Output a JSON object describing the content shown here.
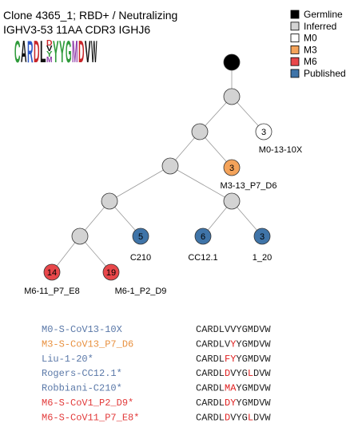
{
  "header": {
    "title": "Clone 4365_1; RBD+ / Neutralizing",
    "subtitle": "IGHV3-53 11AA CDR3 IGHJ6"
  },
  "logo": {
    "columns": [
      [
        "C"
      ],
      [
        "A"
      ],
      [
        "R"
      ],
      [
        "D"
      ],
      [
        "L"
      ],
      [
        "D",
        "V",
        "Y",
        "M"
      ],
      [
        "Y"
      ],
      [
        "Y"
      ],
      [
        "G"
      ],
      [
        "M"
      ],
      [
        "D"
      ],
      [
        "V"
      ],
      [
        "W"
      ]
    ]
  },
  "legend": [
    {
      "name": "Germline",
      "color": "#000000"
    },
    {
      "name": "Inferred",
      "color": "#d3d3d3"
    },
    {
      "name": "M0",
      "color": "#ffffff"
    },
    {
      "name": "M3",
      "color": "#f4a35a"
    },
    {
      "name": "M6",
      "color": "#e8474a"
    },
    {
      "name": "Published",
      "color": "#3f74a8"
    }
  ],
  "nodes": [
    {
      "group": "Germline"
    },
    {
      "group": "Inferred"
    },
    {
      "group": "Inferred"
    },
    {
      "group": "M0",
      "label": "3",
      "caption": "M0-13-10X"
    },
    {
      "group": "Inferred"
    },
    {
      "group": "M3",
      "label": "3",
      "caption": "M3-13_P7_D6"
    },
    {
      "group": "Inferred"
    },
    {
      "group": "Inferred"
    },
    {
      "group": "Inferred"
    },
    {
      "group": "Published",
      "label": "5",
      "caption": "C210"
    },
    {
      "group": "Published",
      "label": "6",
      "caption": "CC12.1"
    },
    {
      "group": "Published",
      "label": "3",
      "caption": "1_20"
    },
    {
      "group": "M6",
      "label": "14",
      "caption": "M6-11_P7_E8"
    },
    {
      "group": "M6",
      "label": "19",
      "caption": "M6-1_P2_D9"
    }
  ],
  "alignment": [
    {
      "name": "M0-S-CoV13-10X",
      "color": "#5a78a8",
      "segments": [
        "CARDLVVYGMDVW"
      ]
    },
    {
      "name": "M3-S-CoV13_P7_D6",
      "color": "#e8903e",
      "segments": [
        "CARDLV",
        "Y",
        "YGMDVW"
      ]
    },
    {
      "name": "Liu-1-20*",
      "color": "#5a78a8",
      "segments": [
        "CARDL",
        "FY",
        "YGMDVW"
      ]
    },
    {
      "name": "Rogers-CC12.1*",
      "color": "#5a78a8",
      "segments": [
        "CARDL",
        "D",
        "VYG",
        "L",
        "DVW"
      ]
    },
    {
      "name": "Robbiani-C210*",
      "color": "#5a78a8",
      "segments": [
        "CARDL",
        "MA",
        "YGMDVW"
      ]
    },
    {
      "name": "M6-S-CoV1_P2_D9*",
      "color": "#e23a3a",
      "segments": [
        "CARDL",
        "DY",
        "YGMDVW"
      ]
    },
    {
      "name": "M6-S-CoV11_P7_E8*",
      "color": "#e23a3a",
      "segments": [
        "CARDL",
        "D",
        "VYG",
        "L",
        "DVW"
      ]
    }
  ]
}
